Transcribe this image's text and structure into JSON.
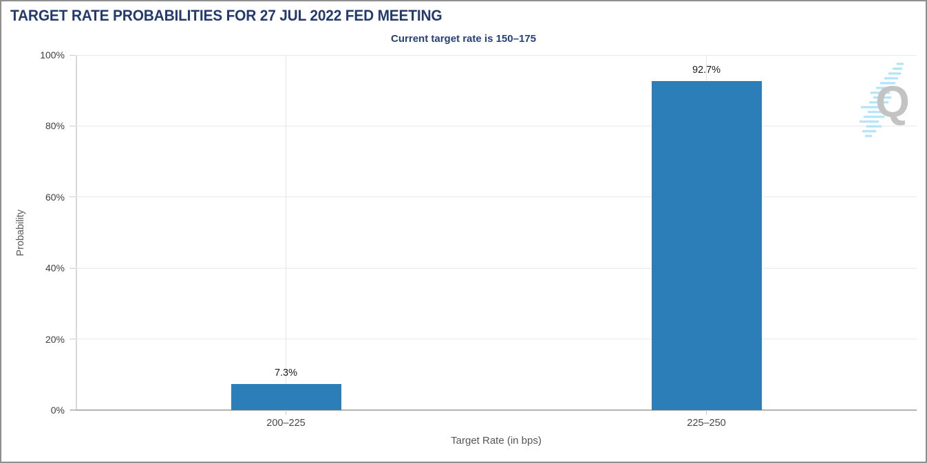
{
  "header": {
    "title": "TARGET RATE PROBABILITIES FOR 27 JUL 2022 FED MEETING",
    "subtitle": "Current target rate is 150–175"
  },
  "watermark": {
    "letter": "Q",
    "icon": "quikstrike-logo",
    "q_color": "#c3c3c3",
    "swoosh_color": "#aee3f8"
  },
  "chart_data": {
    "type": "bar",
    "title": "TARGET RATE PROBABILITIES FOR 27 JUL 2022 FED MEETING",
    "subtitle": "Current target rate is 150–175",
    "categories": [
      "200–225",
      "225–250"
    ],
    "values": [
      7.3,
      92.7
    ],
    "value_labels": [
      "7.3%",
      "92.7%"
    ],
    "xlabel": "Target Rate (in bps)",
    "ylabel": "Probability",
    "ylim": [
      0,
      100
    ],
    "ytick_step": 20,
    "ytick_labels": [
      "0%",
      "20%",
      "40%",
      "60%",
      "80%",
      "100%"
    ],
    "bar_color": "#2b7eb7",
    "grid": true,
    "legend": "none"
  }
}
